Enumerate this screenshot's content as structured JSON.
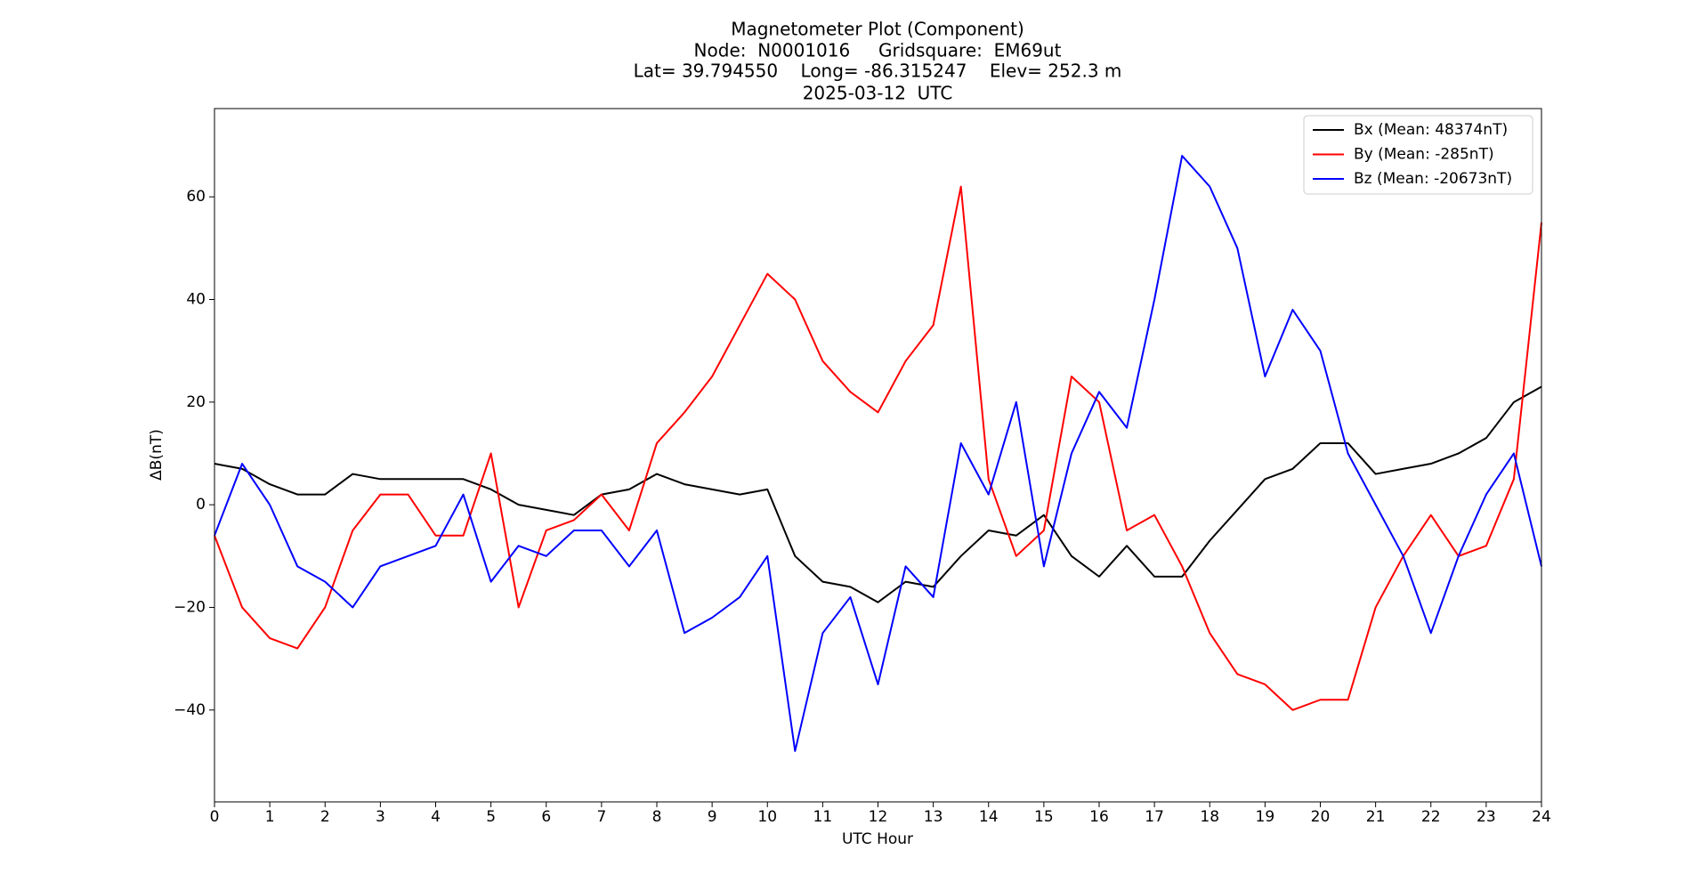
{
  "chart_data": {
    "type": "line",
    "title": [
      "Magnetometer Plot (Component)",
      "Node:  N0001016     Gridsquare:  EM69ut",
      "Lat= 39.794550    Long= -86.315247    Elev= 252.3 m",
      "2025-03-12  UTC"
    ],
    "xlabel": "UTC Hour",
    "ylabel": "ΔB(nT)",
    "x": [
      0,
      0.5,
      1,
      1.5,
      2,
      2.5,
      3,
      3.5,
      4,
      4.5,
      5,
      5.5,
      6,
      6.5,
      7,
      7.5,
      8,
      8.5,
      9,
      9.5,
      10,
      10.5,
      11,
      11.5,
      12,
      12.5,
      13,
      13.5,
      14,
      14.5,
      15,
      15.5,
      16,
      16.5,
      17,
      17.5,
      18,
      18.5,
      19,
      19.5,
      20,
      20.5,
      21,
      21.5,
      22,
      22.5,
      23,
      23.5,
      24
    ],
    "series": [
      {
        "name": "Bx (Mean: 48374nT)",
        "color": "#000000",
        "values": [
          8,
          7,
          4,
          2,
          2,
          6,
          5,
          5,
          5,
          5,
          3,
          0,
          -1,
          -2,
          2,
          3,
          6,
          4,
          3,
          2,
          3,
          -10,
          -15,
          -16,
          -19,
          -15,
          -16,
          -10,
          -5,
          -6,
          -2,
          -10,
          -14,
          -8,
          -14,
          -14,
          -7,
          -1,
          5,
          7,
          12,
          12,
          6,
          7,
          8,
          10,
          13,
          20,
          23
        ]
      },
      {
        "name": "By (Mean: -285nT)",
        "color": "#ff0000",
        "values": [
          -6,
          -20,
          -26,
          -28,
          -20,
          -5,
          2,
          2,
          -6,
          -6,
          10,
          -20,
          -5,
          -3,
          2,
          -5,
          12,
          18,
          25,
          35,
          45,
          40,
          28,
          22,
          18,
          28,
          35,
          62,
          5,
          -10,
          -5,
          25,
          20,
          -5,
          -2,
          -12,
          -25,
          -33,
          -35,
          -40,
          -38,
          -38,
          -20,
          -10,
          -2,
          -10,
          -8,
          5,
          55
        ]
      },
      {
        "name": "Bz (Mean: -20673nT)",
        "color": "#0000ff",
        "values": [
          -6,
          8,
          0,
          -12,
          -15,
          -20,
          -12,
          -10,
          -8,
          2,
          -15,
          -8,
          -10,
          -5,
          -5,
          -12,
          -5,
          -25,
          -22,
          -18,
          -10,
          -48,
          -25,
          -18,
          -35,
          -12,
          -18,
          12,
          2,
          20,
          -12,
          10,
          22,
          15,
          40,
          68,
          62,
          50,
          25,
          38,
          30,
          10,
          0,
          -10,
          -25,
          -10,
          2,
          10,
          -12
        ]
      }
    ],
    "xlim": [
      0,
      24
    ],
    "xticks": [
      0,
      1,
      2,
      3,
      4,
      5,
      6,
      7,
      8,
      9,
      10,
      11,
      12,
      13,
      14,
      15,
      16,
      17,
      18,
      19,
      20,
      21,
      22,
      23,
      24
    ],
    "ylim": [
      -57.9,
      77.2
    ],
    "yticks": [
      {
        "value": -40,
        "label": "−40"
      },
      {
        "value": -20,
        "label": "−20"
      },
      0,
      20,
      40,
      60
    ],
    "legend": "upper right"
  }
}
